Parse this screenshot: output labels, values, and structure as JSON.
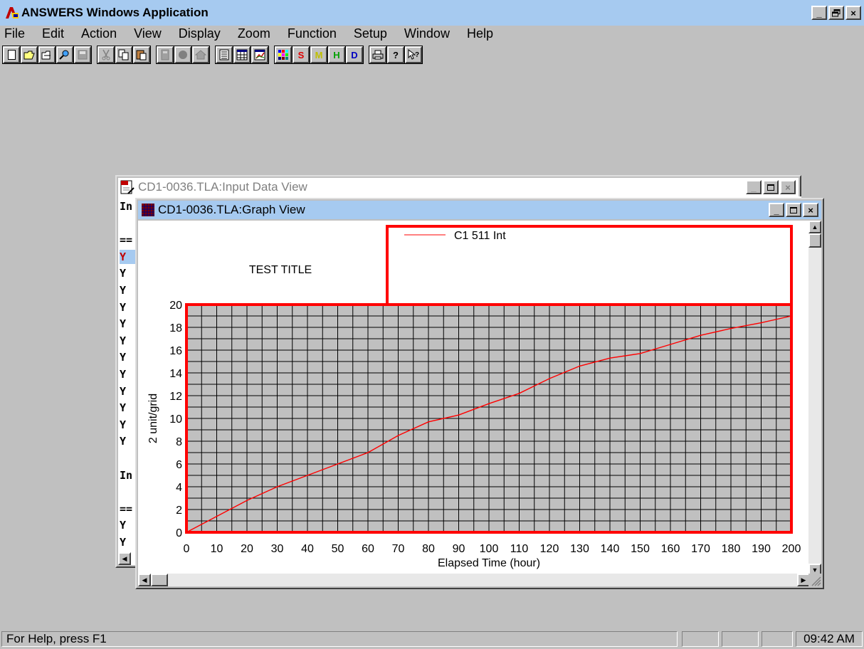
{
  "app": {
    "title": "ANSWERS Windows Application",
    "caption_buttons": [
      "_",
      "▣",
      "×"
    ]
  },
  "menu": [
    "File",
    "Edit",
    "Action",
    "View",
    "Display",
    "Zoom",
    "Function",
    "Setup",
    "Window",
    "Help"
  ],
  "toolbar": {
    "groups": [
      [
        "new-icon",
        "open-icon",
        "open-template-icon",
        "find-icon",
        "save-icon"
      ],
      [
        "cut-icon",
        "copy-icon",
        "paste-icon"
      ],
      [
        "calculate-icon",
        "stop-icon",
        "home-icon"
      ],
      [
        "text-view-icon",
        "table-view-icon",
        "graph-view-icon"
      ],
      [
        "palette-icon",
        "s-icon",
        "m-icon",
        "h-icon",
        "d-icon"
      ],
      [
        "print-icon",
        "help-icon",
        "context-help-icon"
      ]
    ],
    "letters": {
      "s-icon": "S",
      "m-icon": "M",
      "h-icon": "H",
      "d-icon": "D"
    }
  },
  "input_window": {
    "title": "CD1-0036.TLA:Input Data View",
    "lines": [
      "In",
      "",
      "==",
      "Y",
      "Y",
      "Y",
      "Y",
      "Y",
      "Y",
      "Y",
      "Y",
      "Y",
      "Y",
      "Y",
      "Y",
      "",
      "In",
      "",
      "==",
      "Y",
      "Y"
    ]
  },
  "graph_window": {
    "title": "CD1-0036.TLA:Graph View"
  },
  "chart_data": {
    "type": "line",
    "title": "TEST TITLE",
    "xlabel": "Elapsed Time (hour)",
    "ylabel": "2 unit/grid",
    "xlim": [
      0,
      200
    ],
    "ylim": [
      0,
      20
    ],
    "x_ticks": [
      0,
      10,
      20,
      30,
      40,
      50,
      60,
      70,
      80,
      90,
      100,
      110,
      120,
      130,
      140,
      150,
      160,
      170,
      180,
      190,
      200
    ],
    "y_ticks": [
      0,
      2,
      4,
      6,
      8,
      10,
      12,
      14,
      16,
      18,
      20
    ],
    "grid": true,
    "legend": "top-right",
    "series": [
      {
        "name": "C1 511 Int",
        "color": "#ff0000",
        "x": [
          0,
          10,
          20,
          30,
          40,
          50,
          60,
          70,
          80,
          90,
          100,
          110,
          120,
          130,
          140,
          150,
          160,
          170,
          180,
          190,
          200
        ],
        "y": [
          0,
          1.4,
          2.8,
          4.0,
          5.0,
          6.0,
          7.0,
          8.5,
          9.7,
          10.3,
          11.3,
          12.2,
          13.5,
          14.6,
          15.3,
          15.7,
          16.5,
          17.3,
          17.9,
          18.4,
          19.0
        ]
      }
    ],
    "plot_background": "#c0c0c0",
    "frame_color": "#ff0000"
  },
  "status_bar": {
    "text": "For Help, press F1",
    "clock": "09:42 AM"
  }
}
